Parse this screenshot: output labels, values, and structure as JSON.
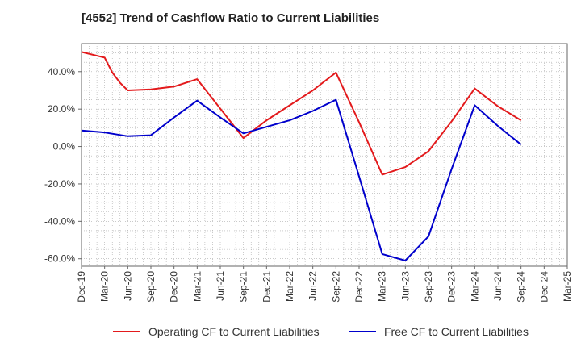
{
  "chart_data": {
    "type": "line",
    "title": "[4552]  Trend of Cashflow Ratio to Current Liabilities",
    "xlabel": "",
    "ylabel": "",
    "x_ticks": [
      "Dec-19",
      "Mar-20",
      "Jun-20",
      "Sep-20",
      "Dec-20",
      "Mar-21",
      "Jun-21",
      "Sep-21",
      "Dec-21",
      "Mar-22",
      "Jun-22",
      "Sep-22",
      "Dec-22",
      "Mar-23",
      "Jun-23",
      "Sep-23",
      "Dec-23",
      "Mar-24",
      "Jun-24",
      "Sep-24",
      "Dec-24",
      "Mar-25"
    ],
    "y_ticks": [
      "40.0%",
      "20.0%",
      "0.0%",
      "-20.0%",
      "-40.0%",
      "-60.0%"
    ],
    "ylim": [
      -64,
      55
    ],
    "grid": true,
    "legend_position": "bottom",
    "series": [
      {
        "name": "Operating CF to Current Liabilities",
        "color": "#e31a1c",
        "points": [
          {
            "x": "Dec-19",
            "y": 50.5
          },
          {
            "x": "Mar-20",
            "y": 47.5
          },
          {
            "x": "Apr-20",
            "y": 39.5
          },
          {
            "x": "May-20",
            "y": 34.0
          },
          {
            "x": "Jun-20",
            "y": 30.0
          },
          {
            "x": "Sep-20",
            "y": 30.5
          },
          {
            "x": "Dec-20",
            "y": 32.0
          },
          {
            "x": "Mar-21",
            "y": 36.0
          },
          {
            "x": "Sep-21",
            "y": 4.5
          },
          {
            "x": "Dec-21",
            "y": 14.0
          },
          {
            "x": "Mar-22",
            "y": 22.0
          },
          {
            "x": "Jun-22",
            "y": 30.0
          },
          {
            "x": "Sep-22",
            "y": 39.5
          },
          {
            "x": "Dec-22",
            "y": 13.0
          },
          {
            "x": "Mar-23",
            "y": -15.0
          },
          {
            "x": "Jun-23",
            "y": -11.0
          },
          {
            "x": "Sep-23",
            "y": -2.5
          },
          {
            "x": "Dec-23",
            "y": 13.5
          },
          {
            "x": "Mar-24",
            "y": 31.0
          },
          {
            "x": "Jun-24",
            "y": 21.5
          },
          {
            "x": "Sep-24",
            "y": 14.0
          }
        ]
      },
      {
        "name": "Free CF to Current Liabilities",
        "color": "#0000cc",
        "points": [
          {
            "x": "Dec-19",
            "y": 8.5
          },
          {
            "x": "Mar-20",
            "y": 7.5
          },
          {
            "x": "Jun-20",
            "y": 5.5
          },
          {
            "x": "Sep-20",
            "y": 6.0
          },
          {
            "x": "Dec-20",
            "y": 15.5
          },
          {
            "x": "Mar-21",
            "y": 24.5
          },
          {
            "x": "Jun-21",
            "y": 15.5
          },
          {
            "x": "Sep-21",
            "y": 7.0
          },
          {
            "x": "Dec-21",
            "y": 10.5
          },
          {
            "x": "Mar-22",
            "y": 14.0
          },
          {
            "x": "Jun-22",
            "y": 19.0
          },
          {
            "x": "Sep-22",
            "y": 25.0
          },
          {
            "x": "Dec-22",
            "y": -16.0
          },
          {
            "x": "Mar-23",
            "y": -57.5
          },
          {
            "x": "Jun-23",
            "y": -61.0
          },
          {
            "x": "Sep-23",
            "y": -48.0
          },
          {
            "x": "Dec-23",
            "y": -12.0
          },
          {
            "x": "Mar-24",
            "y": 22.0
          },
          {
            "x": "Jun-24",
            "y": 11.0
          },
          {
            "x": "Sep-24",
            "y": 1.0
          }
        ]
      }
    ]
  }
}
